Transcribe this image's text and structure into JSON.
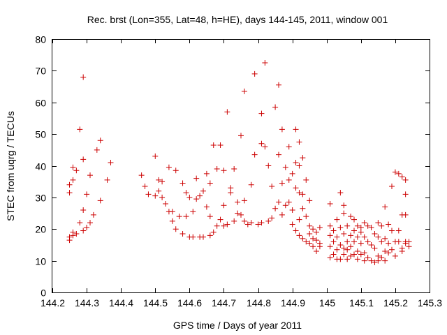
{
  "chart_data": {
    "type": "scatter",
    "title": "Rec. brst (Lon=355, Lat=48, h=HE), days 144-145, 2011, window 001",
    "xlabel": "GPS time / Days of year 2011",
    "ylabel": "STEC from uqrg / TECUs",
    "xlim": [
      144.2,
      145.3
    ],
    "ylim": [
      0,
      80
    ],
    "xticks": [
      144.2,
      144.3,
      144.4,
      144.5,
      144.6,
      144.7,
      144.8,
      144.9,
      145.0,
      145.1,
      145.2,
      145.3
    ],
    "xtick_labels": [
      "144.2",
      "144.3",
      "144.4",
      "144.5",
      "144.6",
      "144.7",
      "144.8",
      "144.9",
      "145",
      "145.1",
      "145.2",
      "145.3"
    ],
    "yticks": [
      0,
      10,
      20,
      30,
      40,
      50,
      60,
      70,
      80
    ],
    "ytick_labels": [
      "0",
      "10",
      "20",
      "30",
      "40",
      "50",
      "60",
      "70",
      "80"
    ],
    "grid": false,
    "marker": "+",
    "color": "#cc0000",
    "series": [
      {
        "name": "STEC",
        "points": [
          [
            144.25,
            16.5
          ],
          [
            144.25,
            17.5
          ],
          [
            144.25,
            31.5
          ],
          [
            144.25,
            34.0
          ],
          [
            144.26,
            18.0
          ],
          [
            144.26,
            19.0
          ],
          [
            144.26,
            35.5
          ],
          [
            144.26,
            39.5
          ],
          [
            144.27,
            18.5
          ],
          [
            144.27,
            38.5
          ],
          [
            144.28,
            51.5
          ],
          [
            144.28,
            22.0
          ],
          [
            144.29,
            19.5
          ],
          [
            144.29,
            26.0
          ],
          [
            144.29,
            42.0
          ],
          [
            144.29,
            68.0
          ],
          [
            144.3,
            20.5
          ],
          [
            144.3,
            31.0
          ],
          [
            144.31,
            22.0
          ],
          [
            144.31,
            37.0
          ],
          [
            144.32,
            24.5
          ],
          [
            144.33,
            45.0
          ],
          [
            144.34,
            48.0
          ],
          [
            144.34,
            29.0
          ],
          [
            144.36,
            35.5
          ],
          [
            144.37,
            41.0
          ],
          [
            144.46,
            37.0
          ],
          [
            144.47,
            33.5
          ],
          [
            144.48,
            31.0
          ],
          [
            144.5,
            43.0
          ],
          [
            144.5,
            30.5
          ],
          [
            144.51,
            35.5
          ],
          [
            144.51,
            32.0
          ],
          [
            144.52,
            35.0
          ],
          [
            144.52,
            30.0
          ],
          [
            144.53,
            28.0
          ],
          [
            144.54,
            39.5
          ],
          [
            144.54,
            25.5
          ],
          [
            144.55,
            25.5
          ],
          [
            144.55,
            22.5
          ],
          [
            144.56,
            20.0
          ],
          [
            144.56,
            38.5
          ],
          [
            144.57,
            24.0
          ],
          [
            144.58,
            18.5
          ],
          [
            144.58,
            34.5
          ],
          [
            144.59,
            24.0
          ],
          [
            144.59,
            31.5
          ],
          [
            144.6,
            17.5
          ],
          [
            144.6,
            30.0
          ],
          [
            144.61,
            25.5
          ],
          [
            144.61,
            17.5
          ],
          [
            144.62,
            29.5
          ],
          [
            144.62,
            36.0
          ],
          [
            144.63,
            17.5
          ],
          [
            144.63,
            30.5
          ],
          [
            144.64,
            32.0
          ],
          [
            144.64,
            17.5
          ],
          [
            144.65,
            27.0
          ],
          [
            144.65,
            37.5
          ],
          [
            144.66,
            18.0
          ],
          [
            144.66,
            24.0
          ],
          [
            144.66,
            34.5
          ],
          [
            144.67,
            46.5
          ],
          [
            144.67,
            19.0
          ],
          [
            144.68,
            39.0
          ],
          [
            144.68,
            21.0
          ],
          [
            144.69,
            23.0
          ],
          [
            144.69,
            46.5
          ],
          [
            144.7,
            21.0
          ],
          [
            144.7,
            27.5
          ],
          [
            144.7,
            38.5
          ],
          [
            144.71,
            57.0
          ],
          [
            144.71,
            21.5
          ],
          [
            144.72,
            31.5
          ],
          [
            144.72,
            33.0
          ],
          [
            144.73,
            22.5
          ],
          [
            144.73,
            39.0
          ],
          [
            144.74,
            28.5
          ],
          [
            144.74,
            25.0
          ],
          [
            144.75,
            49.5
          ],
          [
            144.75,
            24.5
          ],
          [
            144.76,
            63.5
          ],
          [
            144.76,
            22.5
          ],
          [
            144.76,
            29.0
          ],
          [
            144.77,
            21.5
          ],
          [
            144.78,
            34.0
          ],
          [
            144.78,
            22.0
          ],
          [
            144.79,
            43.5
          ],
          [
            144.79,
            69.0
          ],
          [
            144.8,
            21.5
          ],
          [
            144.81,
            56.5
          ],
          [
            144.81,
            22.0
          ],
          [
            144.81,
            47.0
          ],
          [
            144.82,
            72.5
          ],
          [
            144.82,
            46.0
          ],
          [
            144.83,
            40.0
          ],
          [
            144.83,
            22.5
          ],
          [
            144.84,
            23.5
          ],
          [
            144.84,
            33.5
          ],
          [
            144.85,
            58.5
          ],
          [
            144.85,
            26.5
          ],
          [
            144.86,
            65.5
          ],
          [
            144.86,
            43.5
          ],
          [
            144.86,
            28.5
          ],
          [
            144.87,
            51.5
          ],
          [
            144.87,
            34.5
          ],
          [
            144.87,
            24.5
          ],
          [
            144.88,
            39.5
          ],
          [
            144.88,
            27.5
          ],
          [
            144.89,
            46.0
          ],
          [
            144.89,
            28.5
          ],
          [
            144.89,
            35.5
          ],
          [
            144.9,
            37.5
          ],
          [
            144.9,
            26.0
          ],
          [
            144.9,
            21.5
          ],
          [
            144.91,
            51.5
          ],
          [
            144.91,
            41.0
          ],
          [
            144.91,
            33.0
          ],
          [
            144.91,
            19.5
          ],
          [
            144.92,
            47.5
          ],
          [
            144.92,
            40.0
          ],
          [
            144.92,
            31.5
          ],
          [
            144.92,
            23.0
          ],
          [
            144.92,
            18.0
          ],
          [
            144.93,
            42.5
          ],
          [
            144.93,
            31.0
          ],
          [
            144.93,
            17.0
          ],
          [
            144.93,
            26.5
          ],
          [
            144.94,
            35.5
          ],
          [
            144.94,
            24.0
          ],
          [
            144.94,
            16.0
          ],
          [
            144.95,
            29.0
          ],
          [
            144.95,
            21.0
          ],
          [
            144.95,
            15.5
          ],
          [
            144.95,
            18.5
          ],
          [
            144.96,
            20.0
          ],
          [
            144.96,
            14.5
          ],
          [
            144.96,
            17.0
          ],
          [
            144.97,
            19.0
          ],
          [
            144.97,
            13.0
          ],
          [
            144.97,
            16.5
          ],
          [
            144.98,
            20.5
          ],
          [
            144.98,
            14.5
          ],
          [
            144.98,
            15.5
          ],
          [
            145.01,
            28.0
          ],
          [
            145.01,
            21.0
          ],
          [
            145.01,
            18.0
          ],
          [
            145.01,
            14.5
          ],
          [
            145.01,
            11.0
          ],
          [
            145.02,
            19.5
          ],
          [
            145.02,
            16.0
          ],
          [
            145.02,
            12.0
          ],
          [
            145.03,
            23.0
          ],
          [
            145.03,
            17.5
          ],
          [
            145.03,
            13.5
          ],
          [
            145.03,
            10.5
          ],
          [
            145.04,
            31.5
          ],
          [
            145.04,
            20.5
          ],
          [
            145.04,
            15.0
          ],
          [
            145.04,
            10.5
          ],
          [
            145.05,
            27.5
          ],
          [
            145.05,
            25.0
          ],
          [
            145.05,
            18.5
          ],
          [
            145.05,
            14.0
          ],
          [
            145.05,
            12.0
          ],
          [
            145.06,
            21.0
          ],
          [
            145.06,
            16.0
          ],
          [
            145.06,
            13.5
          ],
          [
            145.06,
            10.5
          ],
          [
            145.07,
            24.0
          ],
          [
            145.07,
            18.0
          ],
          [
            145.07,
            14.5
          ],
          [
            145.07,
            11.5
          ],
          [
            145.08,
            23.0
          ],
          [
            145.08,
            19.5
          ],
          [
            145.08,
            16.0
          ],
          [
            145.08,
            12.0
          ],
          [
            145.09,
            21.0
          ],
          [
            145.09,
            17.5
          ],
          [
            145.09,
            13.0
          ],
          [
            145.09,
            10.5
          ],
          [
            145.1,
            20.5
          ],
          [
            145.1,
            19.0
          ],
          [
            145.1,
            15.5
          ],
          [
            145.1,
            12.0
          ],
          [
            145.11,
            22.0
          ],
          [
            145.11,
            17.5
          ],
          [
            145.11,
            12.5
          ],
          [
            145.11,
            10.0
          ],
          [
            145.12,
            21.0
          ],
          [
            145.12,
            16.0
          ],
          [
            145.12,
            11.0
          ],
          [
            145.13,
            20.5
          ],
          [
            145.13,
            15.0
          ],
          [
            145.13,
            10.0
          ],
          [
            145.14,
            18.5
          ],
          [
            145.14,
            14.0
          ],
          [
            145.14,
            9.5
          ],
          [
            145.15,
            22.0
          ],
          [
            145.15,
            17.5
          ],
          [
            145.15,
            11.5
          ],
          [
            145.15,
            10.0
          ],
          [
            145.16,
            21.0
          ],
          [
            145.16,
            16.0
          ],
          [
            145.16,
            11.0
          ],
          [
            145.17,
            27.0
          ],
          [
            145.17,
            17.0
          ],
          [
            145.17,
            13.0
          ],
          [
            145.17,
            10.0
          ],
          [
            145.18,
            21.5
          ],
          [
            145.18,
            15.5
          ],
          [
            145.18,
            12.5
          ],
          [
            145.19,
            33.5
          ],
          [
            145.19,
            19.5
          ],
          [
            145.19,
            13.5
          ],
          [
            145.2,
            38.0
          ],
          [
            145.2,
            16.0
          ],
          [
            145.2,
            11.5
          ],
          [
            145.21,
            37.5
          ],
          [
            145.21,
            19.5
          ],
          [
            145.21,
            16.0
          ],
          [
            145.22,
            36.5
          ],
          [
            145.22,
            24.5
          ],
          [
            145.22,
            14.0
          ],
          [
            145.22,
            13.0
          ],
          [
            145.23,
            35.5
          ],
          [
            145.23,
            31.0
          ],
          [
            145.23,
            24.5
          ],
          [
            145.23,
            16.0
          ],
          [
            145.23,
            15.5
          ],
          [
            145.24,
            16.0
          ],
          [
            145.24,
            14.5
          ]
        ]
      }
    ]
  }
}
